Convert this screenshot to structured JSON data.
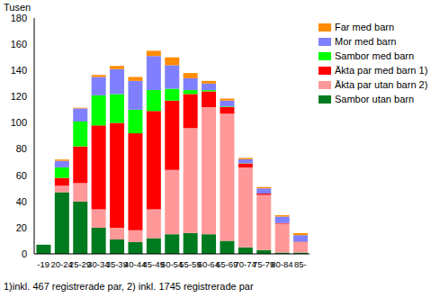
{
  "chart_data": {
    "type": "bar",
    "stacked": true,
    "grid": false,
    "legend": "right",
    "y_label": "Tusen",
    "annotations": [
      "1)inkl. 467 registrerade par, 2) inkl. 1745 registrerade par"
    ],
    "categories": [
      "-19",
      "20-24",
      "25-29",
      "30-34",
      "35-39",
      "40-44",
      "45-49",
      "50-54",
      "55-59",
      "60-64",
      "65-69",
      "70-74",
      "75-79",
      "80-84",
      "85-"
    ],
    "ylim": [
      0,
      180
    ],
    "yticks": [
      0,
      20,
      40,
      60,
      80,
      100,
      120,
      140,
      160,
      180
    ],
    "series": [
      {
        "name": "Sambor utan barn",
        "color": "#007a1f",
        "values": [
          7,
          47,
          40,
          20,
          11,
          9,
          12,
          15,
          16,
          15,
          10,
          5,
          3,
          1,
          1
        ]
      },
      {
        "name": "Äkta par utan barn 2)",
        "color": "#ff9999",
        "values": [
          0,
          5,
          14,
          14,
          9,
          9,
          22,
          49,
          80,
          97,
          97,
          61,
          42,
          22,
          8
        ]
      },
      {
        "name": "Äkta par med barn 1)",
        "color": "#ff0000",
        "values": [
          0,
          6,
          28,
          64,
          80,
          74,
          75,
          53,
          26,
          12,
          5,
          3,
          1,
          0.5,
          0.3
        ]
      },
      {
        "name": "Sambor med barn",
        "color": "#00ff00",
        "values": [
          0,
          8,
          19,
          23,
          22,
          18,
          16,
          9,
          3,
          1,
          0.5,
          0.2,
          0,
          0,
          0
        ]
      },
      {
        "name": "Mor med barn",
        "color": "#8080ff",
        "values": [
          0,
          5,
          10,
          14,
          19,
          22,
          26,
          18,
          9,
          5,
          4.5,
          3,
          4,
          5,
          5
        ]
      },
      {
        "name": "Far med barn",
        "color": "#ff8c00",
        "values": [
          0,
          1,
          0.5,
          1.5,
          2.5,
          3,
          4,
          6,
          4,
          2,
          1.5,
          1,
          1,
          1,
          1.5
        ]
      }
    ]
  }
}
